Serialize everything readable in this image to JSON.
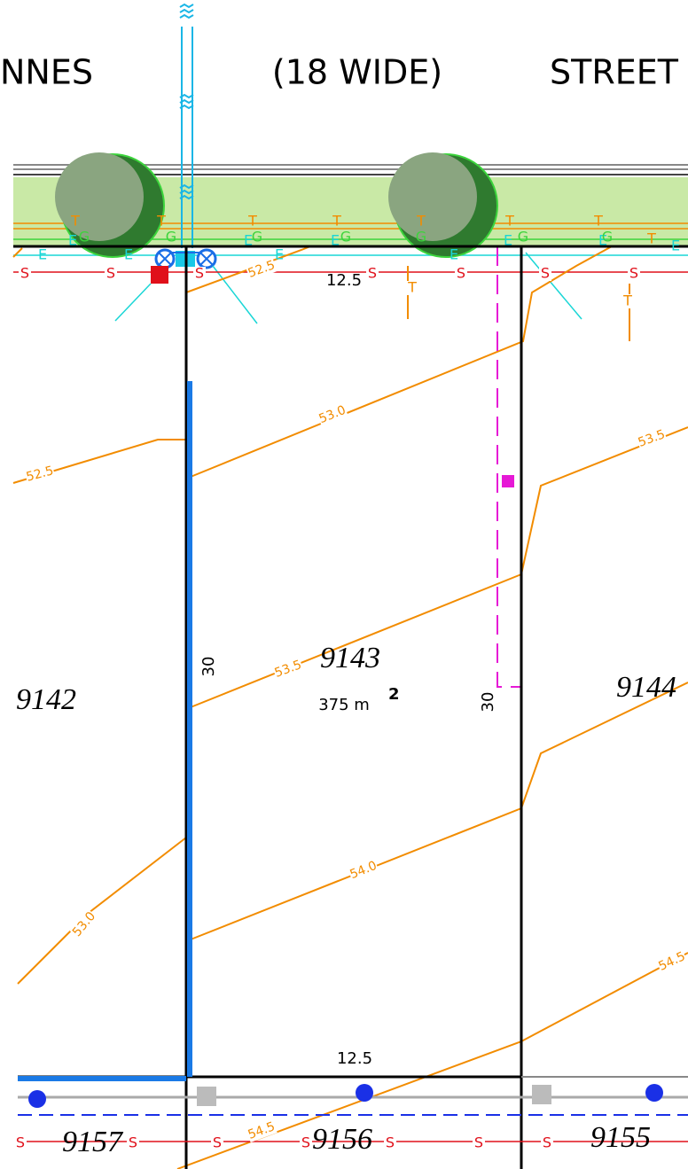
{
  "street": {
    "name_left": "NNES",
    "width": "(18 WIDE)",
    "name_right": "STREET"
  },
  "lots": [
    {
      "number": "9143",
      "area": "375 m",
      "area_exponent": "2"
    },
    {
      "number": "9142"
    },
    {
      "number": "9144"
    },
    {
      "number": "9157"
    },
    {
      "number": "9156"
    },
    {
      "number": "9155"
    }
  ],
  "dimensions": {
    "frontage": "12.5",
    "rear": "12.5",
    "left_depth": "30",
    "right_depth": "30"
  },
  "contours": [
    "52.5",
    "53.0",
    "53.5",
    "54.0",
    "54.5"
  ],
  "service_codes": {
    "sewer": "S",
    "electricity": "E",
    "gas": "G",
    "telecom": "T"
  }
}
